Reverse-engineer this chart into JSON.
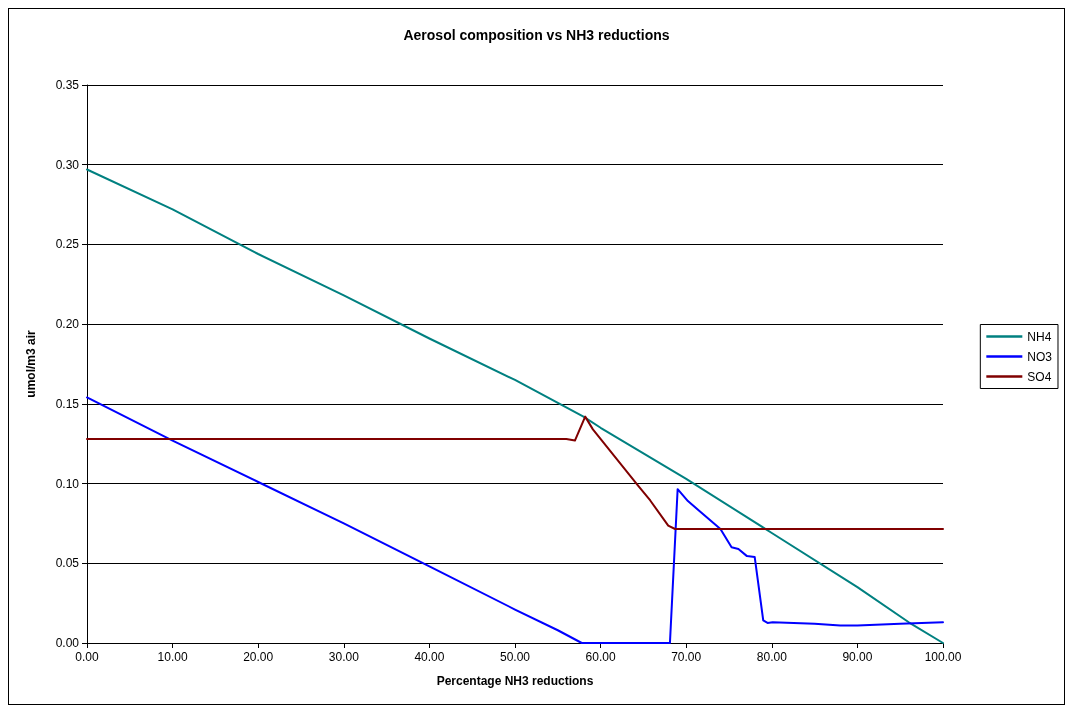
{
  "chart_data": {
    "type": "line",
    "title": "Aerosol composition vs NH3 reductions",
    "xlabel": "Percentage NH3 reductions",
    "ylabel": "umol/m3 air",
    "xlim": [
      0,
      100
    ],
    "xticks": [
      {
        "value": 0,
        "label": "0.00"
      },
      {
        "value": 10,
        "label": "10.00"
      },
      {
        "value": 20,
        "label": "20.00"
      },
      {
        "value": 30,
        "label": "30.00"
      },
      {
        "value": 40,
        "label": "40.00"
      },
      {
        "value": 50,
        "label": "50.00"
      },
      {
        "value": 60,
        "label": "60.00"
      },
      {
        "value": 70,
        "label": "70.00"
      },
      {
        "value": 80,
        "label": "80.00"
      },
      {
        "value": 90,
        "label": "90.00"
      },
      {
        "value": 100,
        "label": "100.00"
      }
    ],
    "ylim": [
      0,
      0.35
    ],
    "yticks": [
      {
        "value": 0,
        "label": "0.00"
      },
      {
        "value": 0.05,
        "label": "0.05"
      },
      {
        "value": 0.1,
        "label": "0.10"
      },
      {
        "value": 0.15,
        "label": "0.15"
      },
      {
        "value": 0.2,
        "label": "0.20"
      },
      {
        "value": 0.25,
        "label": "0.25"
      },
      {
        "value": 0.3,
        "label": "0.30"
      },
      {
        "value": 0.35,
        "label": "0.35"
      }
    ],
    "grid": "y",
    "legend": "right",
    "marker": "none",
    "line_style": "solid",
    "series": [
      {
        "name": "NH4",
        "color": "#008080",
        "x": [
          0,
          10,
          20,
          30,
          40,
          50,
          58,
          60,
          70,
          80,
          90,
          96,
          100
        ],
        "values": [
          0.297,
          0.272,
          0.244,
          0.218,
          0.191,
          0.165,
          0.142,
          0.135,
          0.103,
          0.069,
          0.035,
          0.013,
          0
        ]
      },
      {
        "name": "NO3",
        "color": "#0000ff",
        "x": [
          0,
          10,
          20,
          30,
          40,
          50,
          55,
          57.8,
          68.1,
          69,
          70.2,
          74,
          75.3,
          76.1,
          77.1,
          78,
          79,
          79.5,
          80.1,
          85,
          88,
          90,
          95,
          100
        ],
        "values": [
          0.154,
          0.127,
          0.101,
          0.075,
          0.048,
          0.021,
          0.008,
          0,
          0,
          0.0965,
          0.089,
          0.0715,
          0.06,
          0.059,
          0.0545,
          0.054,
          0.0142,
          0.0126,
          0.013,
          0.012,
          0.011,
          0.011,
          0.012,
          0.013
        ]
      },
      {
        "name": "SO4",
        "color": "#800000",
        "x": [
          0,
          56,
          57,
          58.2,
          59.1,
          64.4,
          65.8,
          67.9,
          68.7,
          100
        ],
        "values": [
          0.128,
          0.128,
          0.127,
          0.142,
          0.134,
          0.0986,
          0.0894,
          0.0736,
          0.0715,
          0.0715
        ]
      }
    ]
  }
}
